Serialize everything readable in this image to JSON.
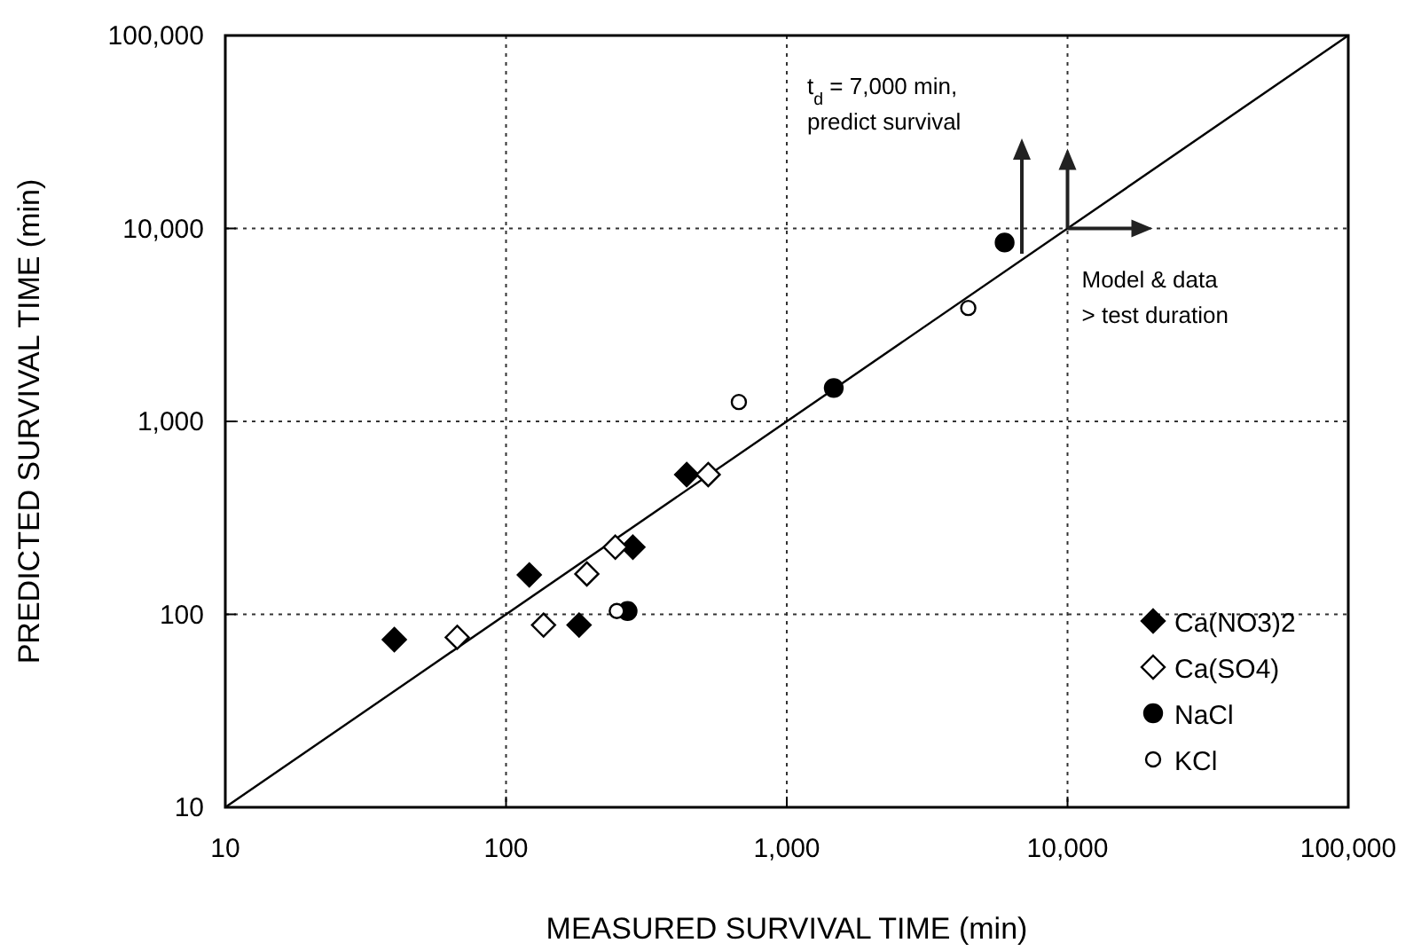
{
  "chart_data": {
    "type": "scatter",
    "xlabel": "MEASURED SURVIVAL TIME (min)",
    "ylabel": "PREDICTED SURVIVAL TIME (min)",
    "log": "xy",
    "xlim": [
      10,
      100000
    ],
    "ylim": [
      10,
      100000
    ],
    "xticks": [
      {
        "value": 10,
        "label": "10"
      },
      {
        "value": 100,
        "label": "100"
      },
      {
        "value": 1000,
        "label": "1,000"
      },
      {
        "value": 10000,
        "label": "10,000"
      },
      {
        "value": 100000,
        "label": "100,000"
      }
    ],
    "yticks": [
      {
        "value": 10,
        "label": "10"
      },
      {
        "value": 100,
        "label": "100"
      },
      {
        "value": 1000,
        "label": "1,000"
      },
      {
        "value": 10000,
        "label": "10,000"
      },
      {
        "value": 100000,
        "label": "100,000"
      }
    ],
    "grid": true,
    "legend": "bottom right",
    "annotations": [
      "t$_{d}$ = 7,000 min,\npredict survival",
      {
        "text": "Model & data\n> test duration",
        "x": 10000,
        "y": 10000
      }
    ],
    "series": [
      {
        "type": "line",
        "x": [
          10,
          100000
        ],
        "values": [
          10,
          100000
        ],
        "color": "#000000",
        "marker": "none",
        "line_style": "solid"
      },
      {
        "name": "Ca(NO3)2",
        "color": "#000000",
        "marker": "diamond",
        "x": [
          40,
          121,
          182,
          283,
          440
        ],
        "values": [
          74,
          160,
          88,
          223,
          530
        ]
      },
      {
        "name": "Ca(SO4)",
        "color": "#ffffff",
        "marker": "diamond",
        "x": [
          67,
          136,
          194,
          245,
          525
        ],
        "values": [
          76,
          88,
          162,
          223,
          530
        ]
      },
      {
        "name": "NaCl",
        "color": "#000000",
        "marker": "circle",
        "x": [
          271,
          1470,
          5970
        ],
        "values": [
          104,
          1490,
          8450
        ]
      },
      {
        "name": "KCl",
        "color": "#ffffff",
        "marker": "circle",
        "x": [
          248,
          675,
          4430
        ],
        "values": [
          104,
          1260,
          3870
        ]
      }
    ]
  }
}
